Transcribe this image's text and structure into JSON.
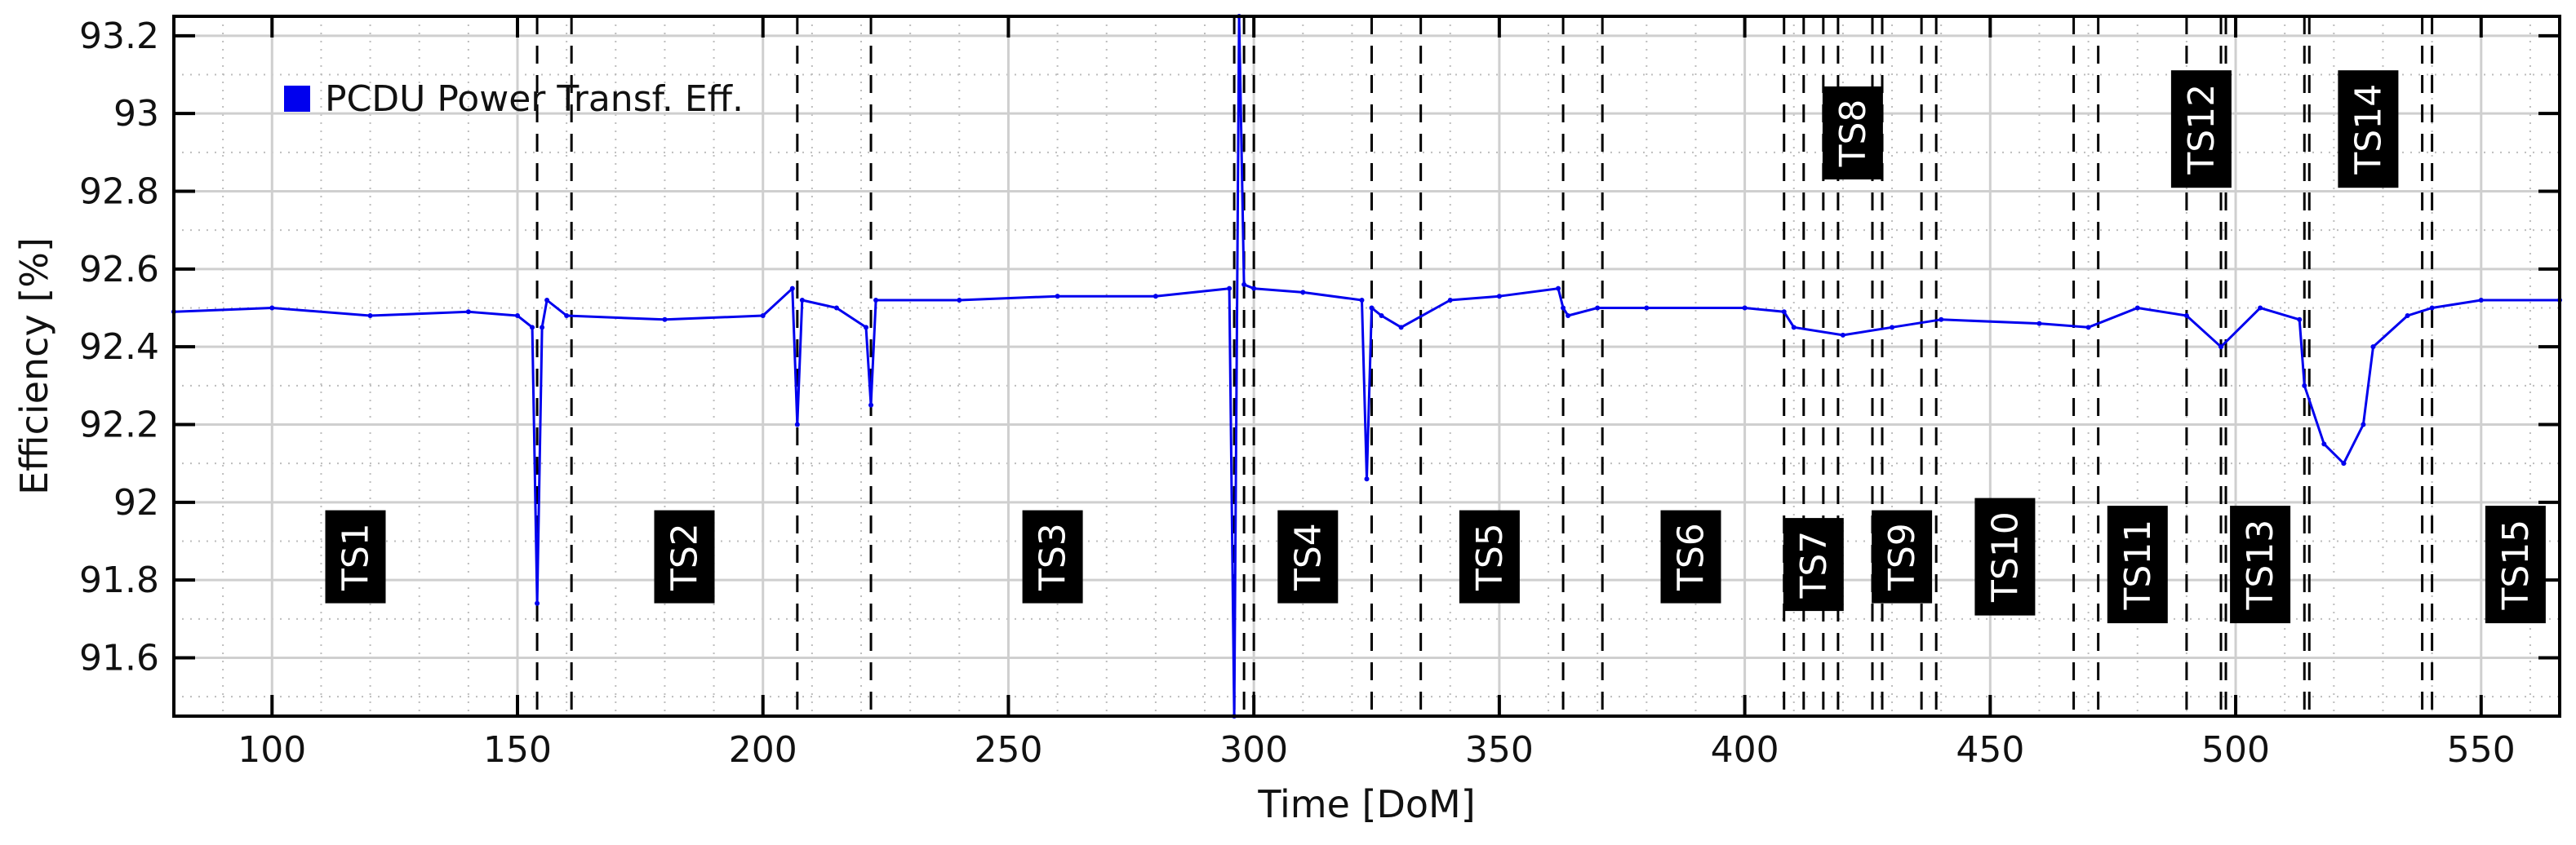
{
  "chart_data": {
    "type": "line",
    "title": "",
    "xlabel": "Time  [DoM]",
    "ylabel": "Efficiency  [%]",
    "xlim": [
      80,
      566
    ],
    "ylim": [
      91.45,
      93.25
    ],
    "xticks": [
      100,
      150,
      200,
      250,
      300,
      350,
      400,
      450,
      500,
      550
    ],
    "xtick_labels": [
      "100",
      "150",
      "200",
      "250",
      "300",
      "350",
      "400",
      "450",
      "500",
      "550"
    ],
    "yticks": [
      91.6,
      91.8,
      92.0,
      92.2,
      92.4,
      92.6,
      92.8,
      93.0,
      93.2
    ],
    "ytick_labels": [
      "91.6",
      "91.8",
      "92",
      "92.2",
      "92.4",
      "92.6",
      "92.8",
      "93",
      "93.2"
    ],
    "grid": true,
    "legend_position": "top-left",
    "colors": {
      "series": "#0000ee",
      "ts_box": "#000000",
      "ts_text": "#ffffff",
      "grid_major": "#cfcfcf",
      "grid_minor": "#bdbdbd"
    },
    "series": [
      {
        "name": "PCDU Power Transf. Eff.",
        "x": [
          80,
          100,
          120,
          140,
          150,
          153,
          154,
          155,
          156,
          160,
          180,
          200,
          206,
          207,
          208,
          215,
          221,
          222,
          223,
          240,
          260,
          280,
          295,
          296,
          297,
          298,
          300,
          310,
          322,
          323,
          324,
          326,
          330,
          340,
          350,
          362,
          363,
          364,
          370,
          380,
          400,
          408,
          410,
          420,
          430,
          440,
          460,
          470,
          480,
          490,
          497,
          505,
          513,
          514,
          518,
          522,
          526,
          528,
          535,
          540,
          550,
          566
        ],
        "y": [
          92.49,
          92.5,
          92.48,
          92.49,
          92.48,
          92.45,
          91.74,
          92.45,
          92.52,
          92.48,
          92.47,
          92.48,
          92.55,
          92.2,
          92.52,
          92.5,
          92.45,
          92.25,
          92.52,
          92.52,
          92.53,
          92.53,
          92.55,
          91.45,
          93.25,
          92.56,
          92.55,
          92.54,
          92.52,
          92.06,
          92.5,
          92.48,
          92.45,
          92.52,
          92.53,
          92.55,
          92.5,
          92.48,
          92.5,
          92.5,
          92.5,
          92.49,
          92.45,
          92.43,
          92.45,
          92.47,
          92.46,
          92.45,
          92.5,
          92.48,
          92.4,
          92.5,
          92.47,
          92.3,
          92.15,
          92.1,
          92.2,
          92.4,
          92.48,
          92.5,
          92.52,
          92.52
        ]
      }
    ],
    "vlines": [
      154,
      161,
      207,
      222,
      296,
      298,
      300,
      324,
      334,
      363,
      371,
      408,
      412,
      416,
      419,
      426,
      428,
      436,
      439,
      467,
      472,
      490,
      497,
      498,
      514,
      515,
      538,
      540
    ],
    "annotations": [
      {
        "text": "TS1",
        "x": 117,
        "y": 91.86
      },
      {
        "text": "TS2",
        "x": 184,
        "y": 91.86
      },
      {
        "text": "TS3",
        "x": 259,
        "y": 91.86
      },
      {
        "text": "TS4",
        "x": 311,
        "y": 91.86
      },
      {
        "text": "TS5",
        "x": 348,
        "y": 91.86
      },
      {
        "text": "TS6",
        "x": 389,
        "y": 91.86
      },
      {
        "text": "TS7",
        "x": 414,
        "y": 91.84
      },
      {
        "text": "TS8",
        "x": 422,
        "y": 92.95
      },
      {
        "text": "TS9",
        "x": 432,
        "y": 91.86
      },
      {
        "text": "TS10",
        "x": 453,
        "y": 91.86
      },
      {
        "text": "TS11",
        "x": 480,
        "y": 91.84
      },
      {
        "text": "TS12",
        "x": 493,
        "y": 92.96
      },
      {
        "text": "TS13",
        "x": 505,
        "y": 91.84
      },
      {
        "text": "TS14",
        "x": 527,
        "y": 92.96
      },
      {
        "text": "TS15",
        "x": 557,
        "y": 91.84
      }
    ]
  }
}
